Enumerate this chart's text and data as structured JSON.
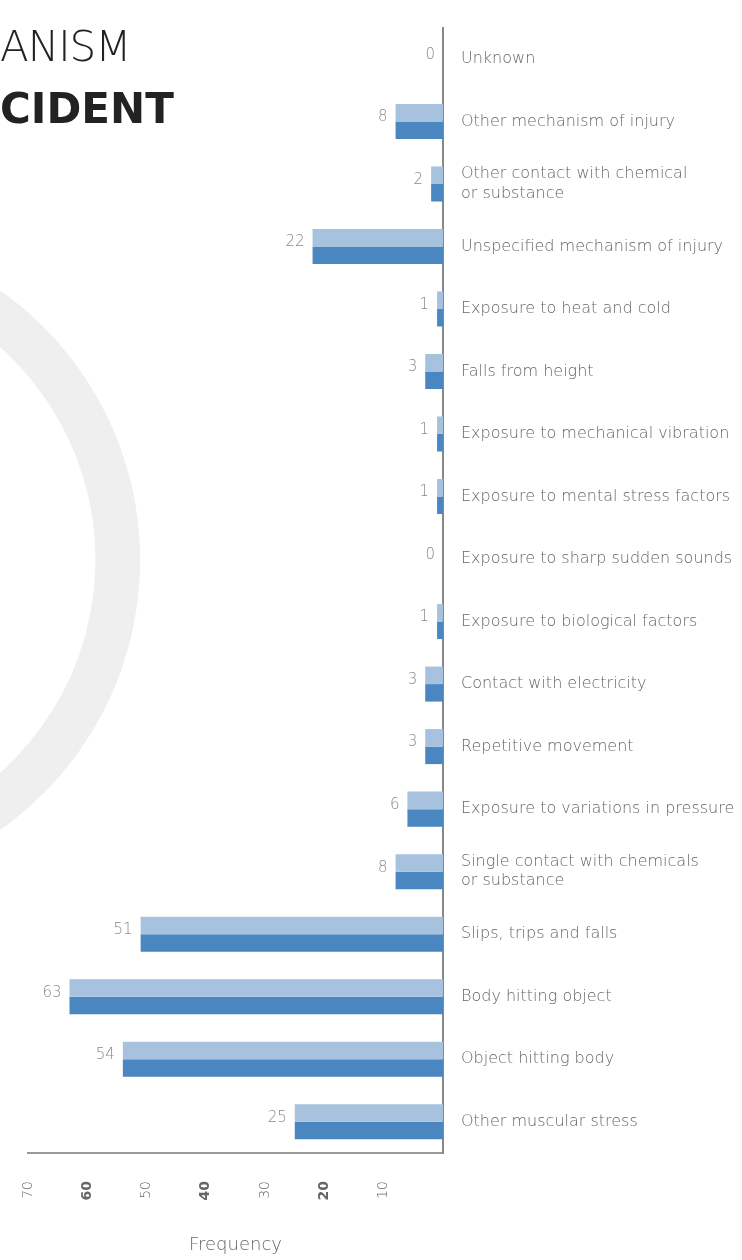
{
  "chart_data": {
    "type": "bar",
    "orientation": "horizontal",
    "title": "ANISM",
    "subtitle": "CIDENT",
    "xlabel": "Frequency",
    "categories": [
      "Unknown",
      "Other mechanism of injury",
      "Other contact with chemical\nor substance",
      "Unspecified mechanism of injury",
      "Exposure to heat and cold",
      "Falls from height",
      "Exposure to mechanical vibration",
      "Exposure to mental stress factors",
      "Exposure to sharp sudden sounds",
      "Exposure to biological factors",
      "Contact with electricity",
      "Repetitive movement",
      "Exposure to variations in pressure",
      "Single contact with chemicals\nor substance",
      "Slips, trips and falls",
      "Body hitting object",
      "Object hitting body",
      "Other muscular stress"
    ],
    "series": [
      {
        "color": "#a6c2de",
        "values": [
          0,
          8,
          2,
          22,
          1,
          3,
          1,
          1,
          0,
          1,
          3,
          3,
          6,
          8,
          51,
          63,
          54,
          25
        ],
        "value_labels": [
          "0",
          "8",
          "2",
          "22",
          "1",
          "3",
          "1",
          "1",
          "0",
          "1",
          "3",
          "3",
          "6",
          "8",
          "51",
          "63",
          "54",
          "25"
        ]
      },
      {
        "color": "#4a86c0",
        "values": [
          0,
          8,
          2,
          22,
          1,
          3,
          1,
          1,
          0,
          1,
          3,
          3,
          6,
          8,
          51,
          63,
          54,
          25
        ]
      }
    ],
    "xlim": [
      70,
      0
    ],
    "xticks": [
      70,
      60,
      50,
      40,
      30,
      20,
      10
    ],
    "grid": false,
    "legend": false
  }
}
